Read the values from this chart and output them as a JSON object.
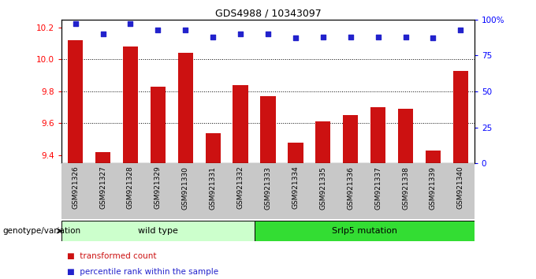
{
  "title": "GDS4988 / 10343097",
  "samples": [
    "GSM921326",
    "GSM921327",
    "GSM921328",
    "GSM921329",
    "GSM921330",
    "GSM921331",
    "GSM921332",
    "GSM921333",
    "GSM921334",
    "GSM921335",
    "GSM921336",
    "GSM921337",
    "GSM921338",
    "GSM921339",
    "GSM921340"
  ],
  "transformed_count": [
    10.12,
    9.42,
    10.08,
    9.83,
    10.04,
    9.54,
    9.84,
    9.77,
    9.48,
    9.61,
    9.65,
    9.7,
    9.69,
    9.43,
    9.93
  ],
  "percentile_rank": [
    97,
    90,
    97,
    93,
    93,
    88,
    90,
    90,
    87,
    88,
    88,
    88,
    88,
    87,
    93
  ],
  "ylim_left": [
    9.35,
    10.25
  ],
  "ylim_right": [
    0,
    100
  ],
  "yticks_left": [
    9.4,
    9.6,
    9.8,
    10.0,
    10.2
  ],
  "yticks_right": [
    0,
    25,
    50,
    75,
    100
  ],
  "groups": [
    {
      "label": "wild type",
      "start": 0,
      "end": 7,
      "color": "#ccffcc"
    },
    {
      "label": "Srlp5 mutation",
      "start": 7,
      "end": 15,
      "color": "#33dd33"
    }
  ],
  "bar_color": "#cc1111",
  "dot_color": "#2222cc",
  "grid_lines": [
    9.6,
    9.8,
    10.0
  ],
  "genotype_label": "genotype/variation"
}
